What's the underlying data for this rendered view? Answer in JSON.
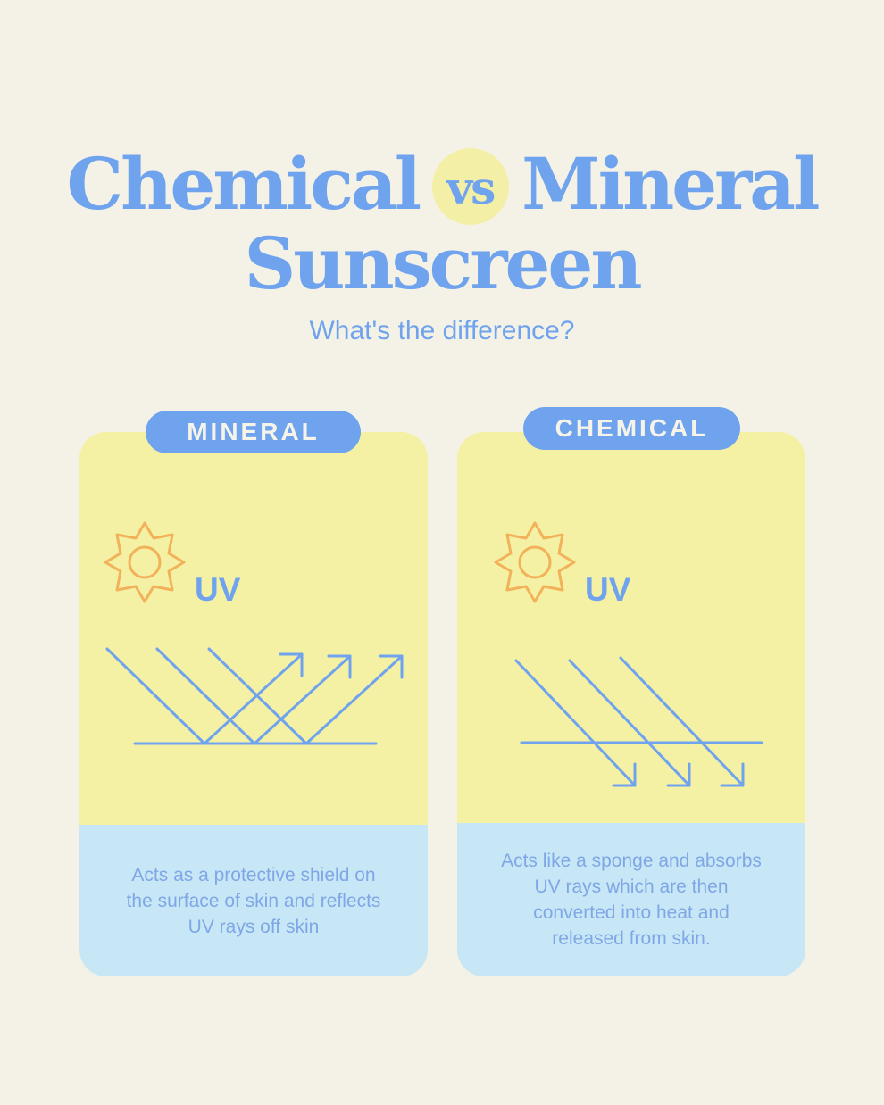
{
  "header": {
    "title_word1": "Chemical",
    "title_vs": "vs",
    "title_word2": "Mineral",
    "title_line2": "Sunscreen",
    "subtitle": "What's the difference?"
  },
  "cards": [
    {
      "label": "MINERAL",
      "uv_label": "UV",
      "sun_icon": "sun-icon",
      "illustration": "rays-reflected-off-skin",
      "description": "Acts as a protective shield on the surface of skin and reflects UV rays off skin"
    },
    {
      "label": "CHEMICAL",
      "uv_label": "UV",
      "sun_icon": "sun-icon",
      "illustration": "rays-absorbed-into-skin",
      "description": "Acts like a sponge and absorbs UV rays which are then converted into heat and released from skin."
    }
  ],
  "colors": {
    "background": "#f4f2e6",
    "accent_blue": "#6fa3ee",
    "card_yellow": "#f4f0a4",
    "card_blue": "#c8e7f6",
    "sun_orange": "#f2b25a",
    "vs_circle": "#f3efa7"
  }
}
